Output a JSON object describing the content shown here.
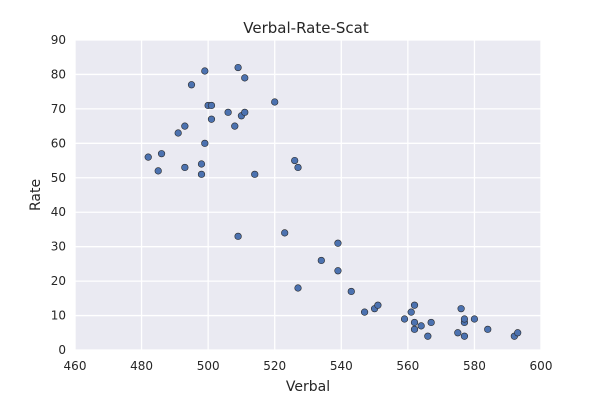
{
  "chart_data": {
    "type": "scatter",
    "title": "Verbal-Rate-Scat",
    "xlabel": "Verbal",
    "ylabel": "Rate",
    "xlim": [
      460,
      600
    ],
    "ylim": [
      0,
      90
    ],
    "xticks": [
      460,
      480,
      500,
      520,
      540,
      560,
      580,
      600
    ],
    "yticks": [
      0,
      10,
      20,
      30,
      40,
      50,
      60,
      70,
      80,
      90
    ],
    "grid": true,
    "legend": "none",
    "colors": {
      "point": "#4c72b0",
      "background": "#eaeaf2",
      "grid": "#ffffff"
    },
    "series": [
      {
        "x": [
          482,
          485,
          486,
          491,
          493,
          493,
          495,
          498,
          498,
          499,
          499,
          500,
          501,
          501,
          506,
          508,
          509,
          509,
          510,
          511,
          511,
          514,
          520,
          523,
          526,
          527,
          527,
          534,
          539,
          539,
          543,
          547,
          550,
          551,
          559,
          561,
          562,
          562,
          562,
          564,
          566,
          567,
          575,
          576,
          577,
          577,
          577,
          580,
          584,
          592,
          593
        ],
        "y": [
          56,
          52,
          57,
          63,
          53,
          65,
          77,
          54,
          51,
          60,
          81,
          71,
          67,
          71,
          69,
          65,
          33,
          82,
          68,
          79,
          69,
          51,
          72,
          34,
          55,
          18,
          53,
          26,
          31,
          23,
          17,
          11,
          12,
          13,
          9,
          11,
          13,
          8,
          6,
          7,
          4,
          8,
          5,
          12,
          8,
          9,
          4,
          9,
          6,
          4,
          5
        ]
      }
    ]
  }
}
